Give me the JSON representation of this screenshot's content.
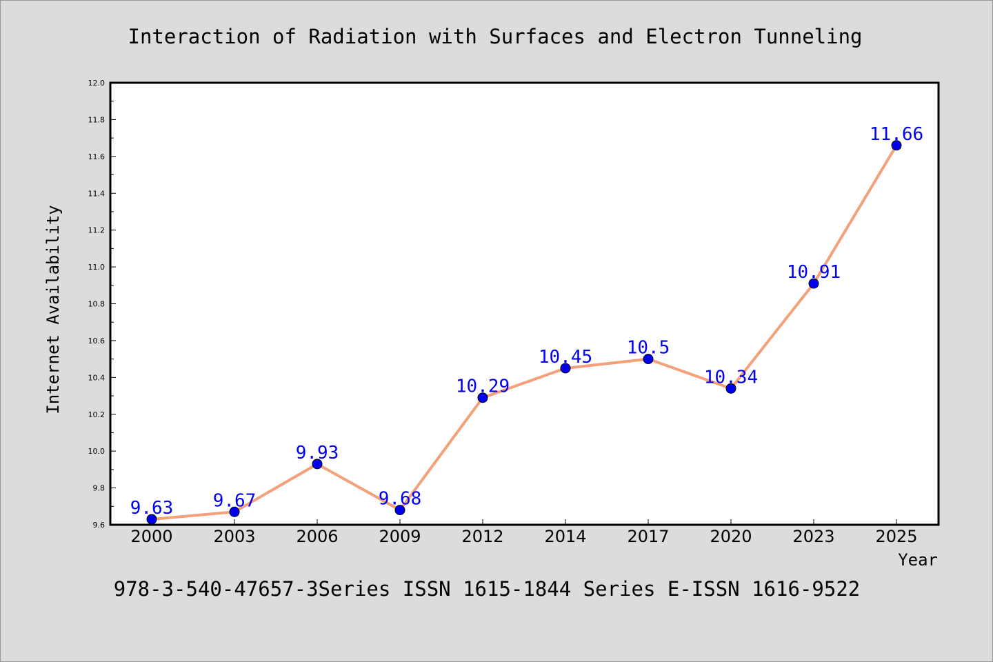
{
  "chart_data": {
    "type": "line",
    "title": "Interaction of Radiation with Surfaces and Electron Tunneling",
    "xlabel": "Year",
    "ylabel": "Internet Availability",
    "categories": [
      "2000",
      "2003",
      "2006",
      "2009",
      "2012",
      "2014",
      "2017",
      "2020",
      "2023",
      "2025"
    ],
    "series": [
      {
        "values": [
          9.63,
          9.67,
          9.93,
          9.68,
          10.29,
          10.45,
          10.5,
          10.34,
          10.91,
          11.66
        ],
        "labels": [
          "9.63",
          "9.67",
          "9.93",
          "9.68",
          "10.29",
          "10.45",
          "10.5",
          "10.34",
          "10.91",
          "11.66"
        ],
        "line_color": "#f4a07a",
        "marker_color": "#0000ee"
      }
    ],
    "ylim": [
      9.6,
      12.0
    ],
    "yticks": [
      "9.6",
      "9.8",
      "10.0",
      "10.2",
      "10.4",
      "10.6",
      "10.8",
      "11.0",
      "11.2",
      "11.4",
      "11.6",
      "11.8",
      "12.0"
    ],
    "grid": false,
    "legend": "none"
  },
  "caption": "978-3-540-47657-3Series ISSN 1615-1844 Series E-ISSN 1616-9522",
  "colors": {
    "background": "#dcdcdc",
    "plot_background": "#ffffff",
    "axis": "#000000"
  }
}
